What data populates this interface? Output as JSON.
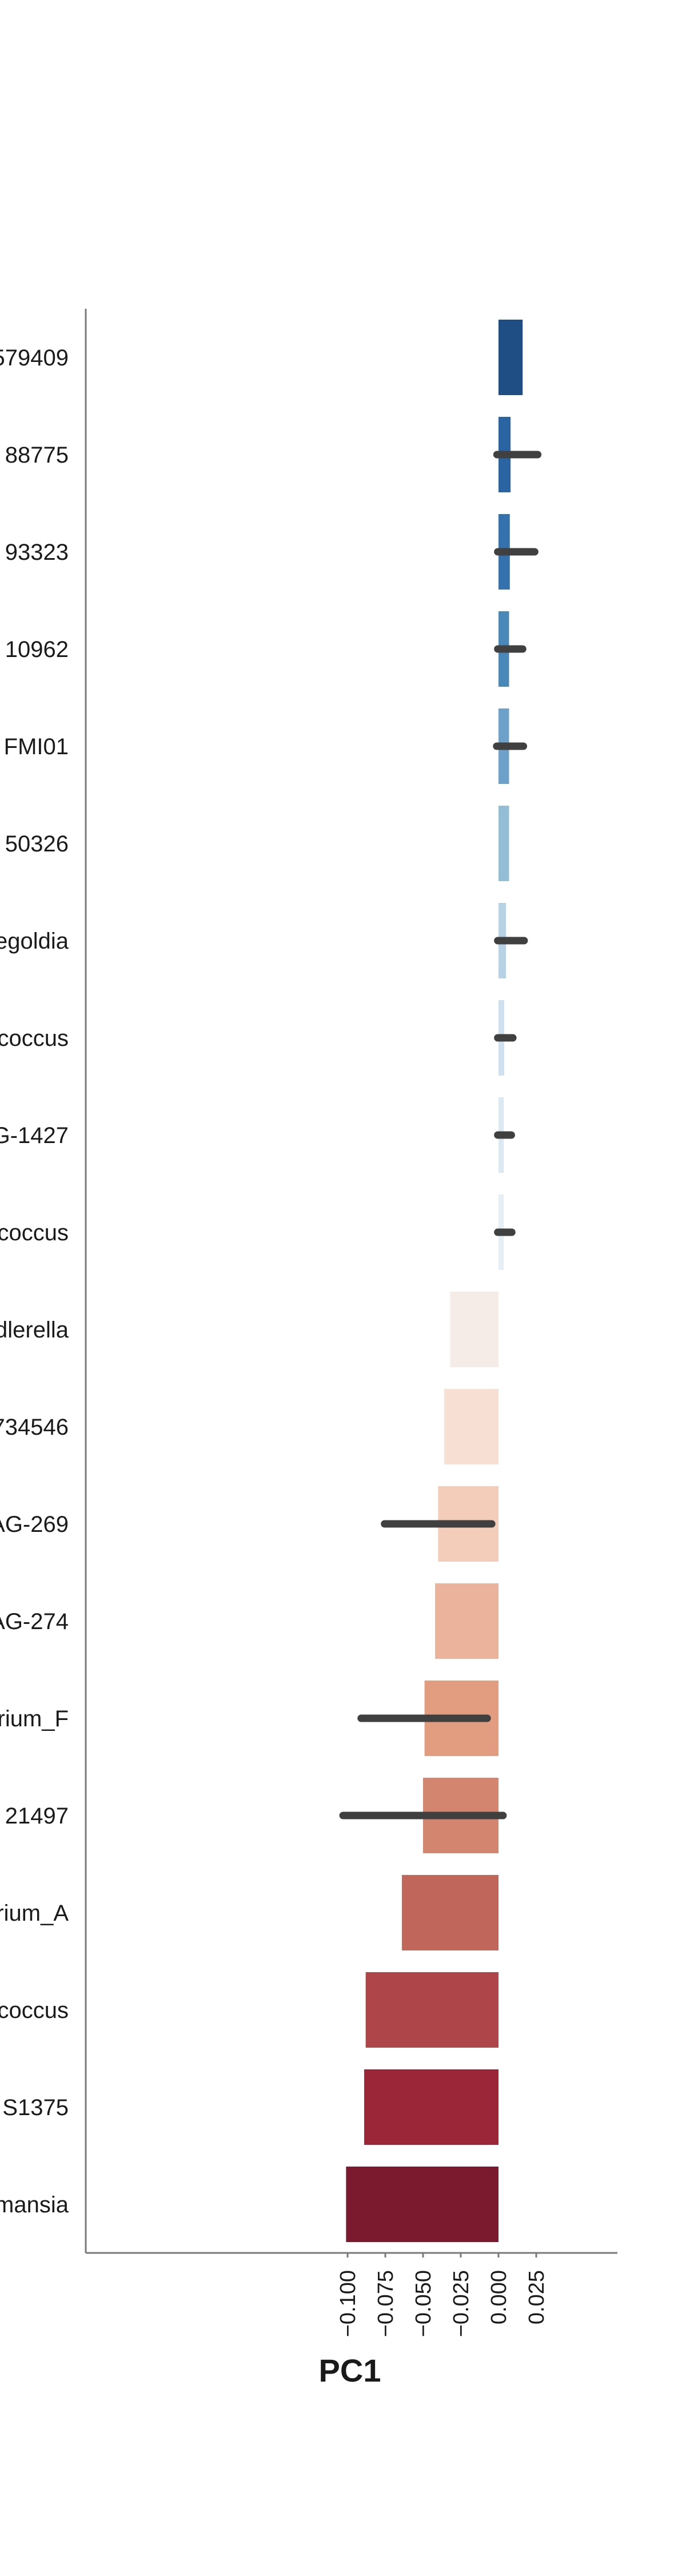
{
  "chart_data": {
    "type": "bar",
    "orientation": "horizontal",
    "xlabel": "PC1",
    "ylabel": "",
    "xlim": [
      -0.11,
      0.032
    ],
    "xticks": [
      -0.1,
      -0.075,
      -0.05,
      -0.025,
      0.0,
      0.025
    ],
    "xtick_labels": [
      "−0.100",
      "−0.075",
      "−0.050",
      "−0.025",
      "0.000",
      "0.025"
    ],
    "grid": false,
    "categories": [
      "579409",
      "88775",
      "93323",
      "10962",
      "FMI01",
      "50326",
      "egoldia",
      "coccus",
      "G-1427",
      "coccus",
      "dlerella",
      "734546",
      "AG-269",
      "AG-274",
      "rium_F",
      "21497",
      "rium_A",
      "coccus",
      "S1375",
      "mansia"
    ],
    "values": [
      0.016,
      0.008,
      0.0075,
      0.007,
      0.007,
      0.007,
      0.005,
      0.0038,
      0.0035,
      0.0035,
      -0.032,
      -0.036,
      -0.04,
      -0.042,
      -0.049,
      -0.05,
      -0.064,
      -0.088,
      -0.089,
      -0.101
    ],
    "error_low": [
      null,
      -0.001,
      -0.0005,
      -0.0005,
      -0.0012,
      null,
      -0.0005,
      -0.0005,
      -0.0005,
      -0.0005,
      null,
      null,
      -0.0755,
      null,
      -0.091,
      -0.103,
      null,
      null,
      null,
      null
    ],
    "error_high": [
      null,
      0.026,
      0.024,
      0.016,
      0.0165,
      null,
      0.017,
      0.0095,
      0.0085,
      0.0088,
      null,
      null,
      -0.0045,
      null,
      -0.0075,
      0.003,
      null,
      null,
      null,
      null
    ],
    "colors": [
      "#1f4e85",
      "#2a64a2",
      "#3571ad",
      "#4b88ba",
      "#6ea1c9",
      "#94bdd6",
      "#b7d2e5",
      "#cfe1ee",
      "#dce9f2",
      "#e6eff5",
      "#f5ebe7",
      "#f7dfd3",
      "#f3cdb9",
      "#ebb39b",
      "#e29c80",
      "#d38570",
      "#c1665a",
      "#ae4649",
      "#9b2637",
      "#7b1a2e"
    ]
  }
}
